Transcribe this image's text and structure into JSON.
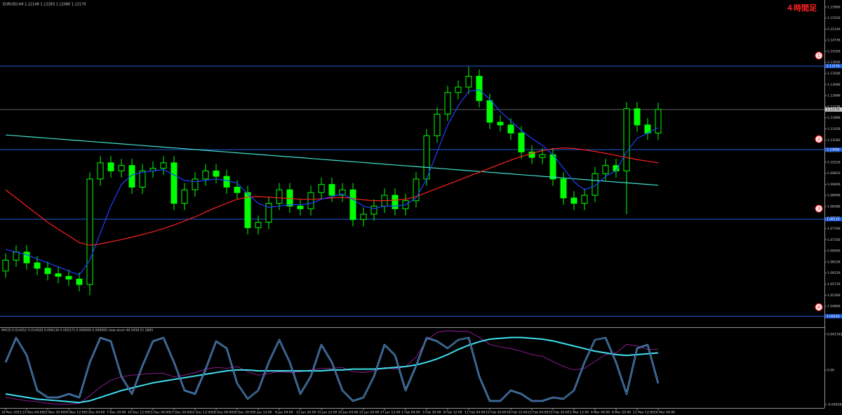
{
  "header": "EURUSD,H4  1.12148 1.12283 1.12080 1.12170",
  "timeframe_label": "４時間足",
  "chart_data": [
    {
      "type": "candlestick",
      "categories": [
        "18 Nov 2015",
        null,
        "23 Nov 04:00",
        null,
        "25 Nov 20:00",
        null,
        "30 Nov 12:00",
        null,
        "3 Dec 04:00",
        null,
        "7 Dec 20:00",
        null,
        "10 Dec 12:00",
        null,
        "15 Dec 04:00",
        null,
        "17 Dec 20:00",
        null,
        "22 Dec 12:00",
        null,
        "28 Dec 04:00",
        null,
        "30 Dec 20:00",
        null,
        "5 Jan 12:00",
        null,
        "8 Jan 04:00",
        null,
        "12 Jan 20:00",
        null,
        "15 Jan 12:00",
        null,
        "20 Jan 04:00",
        null,
        "22 Jan 20:00",
        null,
        "27 Jan 12:00",
        null,
        "1 Feb 04:00",
        null,
        "3 Feb 20:00",
        null,
        "8 Feb 12:00",
        null,
        "11 Feb 04:00",
        null,
        "15 Feb 20:00",
        null,
        "18 Feb 12:00",
        null,
        "23 Feb 04:00",
        null,
        "25 Feb 20:00",
        null,
        "1 Mar 12:00",
        null,
        "4 Mar 04:00",
        null,
        "8 Mar 20:00",
        null,
        "11 Mar 12:00",
        null,
        "16 Mar 04:00"
      ],
      "open": [
        1.062,
        1.066,
        1.069,
        1.065,
        1.063,
        1.061,
        1.06,
        1.059,
        1.057,
        1.096,
        1.102,
        1.099,
        1.101,
        1.093,
        1.099,
        1.1,
        1.102,
        1.087,
        1.092,
        1.096,
        1.099,
        1.097,
        1.093,
        1.091,
        1.078,
        1.08,
        1.087,
        1.092,
        1.086,
        1.085,
        1.091,
        1.094,
        1.09,
        1.092,
        1.081,
        1.083,
        1.086,
        1.09,
        1.085,
        1.088,
        1.096,
        1.112,
        1.12,
        1.128,
        1.13,
        1.134,
        1.125,
        1.117,
        1.116,
        1.113,
        1.106,
        1.104,
        1.105,
        1.096,
        1.089,
        1.087,
        1.09,
        1.098,
        1.101,
        1.099,
        1.122,
        1.116,
        1.113
      ],
      "high": [
        1.0685,
        1.0715,
        1.0715,
        1.0675,
        1.0655,
        1.0635,
        1.0625,
        1.0615,
        1.0985,
        1.1045,
        1.1045,
        1.1035,
        1.1035,
        1.1015,
        1.1025,
        1.1045,
        1.1045,
        1.0945,
        1.0985,
        1.1015,
        1.1015,
        1.0995,
        1.0955,
        1.0935,
        1.0825,
        1.0895,
        1.0945,
        1.0945,
        1.0885,
        1.0935,
        1.0965,
        1.0965,
        1.0945,
        1.0945,
        1.0855,
        1.0885,
        1.0925,
        1.0925,
        1.0905,
        1.0985,
        1.1145,
        1.1225,
        1.1305,
        1.1325,
        1.1375,
        1.1365,
        1.1275,
        1.1195,
        1.1185,
        1.1155,
        1.1085,
        1.1075,
        1.1075,
        1.0985,
        1.0915,
        1.0925,
        1.1005,
        1.1035,
        1.1035,
        1.1245,
        1.1245,
        1.1185,
        1.1242
      ],
      "low": [
        1.0595,
        1.0635,
        1.0625,
        1.0605,
        1.0585,
        1.0575,
        1.0565,
        1.0545,
        1.053,
        1.0935,
        1.0965,
        1.0965,
        1.0905,
        1.0905,
        1.0965,
        1.0975,
        1.0845,
        1.0845,
        1.0895,
        1.0935,
        1.0945,
        1.0905,
        1.0885,
        1.0755,
        1.0755,
        1.0775,
        1.0845,
        1.0835,
        1.0825,
        1.0825,
        1.0885,
        1.0875,
        1.0875,
        1.0785,
        1.0785,
        1.0805,
        1.0835,
        1.0825,
        1.0825,
        1.0855,
        1.0935,
        1.1095,
        1.1175,
        1.1255,
        1.1275,
        1.1225,
        1.1145,
        1.1135,
        1.1105,
        1.1035,
        1.1015,
        1.1015,
        1.0935,
        1.0865,
        1.0845,
        1.0845,
        1.0875,
        1.0955,
        1.0965,
        1.083,
        1.1135,
        1.1105,
        1.1105
      ],
      "close": [
        1.066,
        1.069,
        1.065,
        1.063,
        1.061,
        1.06,
        1.059,
        1.057,
        1.096,
        1.102,
        1.099,
        1.101,
        1.093,
        1.099,
        1.1,
        1.102,
        1.087,
        1.092,
        1.096,
        1.099,
        1.097,
        1.093,
        1.091,
        1.078,
        1.08,
        1.087,
        1.092,
        1.086,
        1.085,
        1.091,
        1.094,
        1.09,
        1.092,
        1.081,
        1.083,
        1.086,
        1.09,
        1.085,
        1.088,
        1.096,
        1.112,
        1.12,
        1.128,
        1.13,
        1.134,
        1.125,
        1.117,
        1.116,
        1.113,
        1.106,
        1.104,
        1.105,
        1.096,
        1.089,
        1.087,
        1.09,
        1.098,
        1.101,
        1.099,
        1.122,
        1.116,
        1.113,
        1.1217
      ],
      "candle_color": "#00ff00",
      "series": [
        {
          "color": "#40e0d0",
          "values": [
            1.1123,
            1.112,
            1.1117,
            1.1114,
            1.1111,
            1.1108,
            1.1105,
            1.1102,
            1.1099,
            1.1096,
            1.1093,
            1.109,
            1.1087,
            1.1084,
            1.1081,
            1.1078,
            1.1075,
            1.1072,
            1.1069,
            1.1066,
            1.1063,
            1.106,
            1.1057,
            1.1054,
            1.1051,
            1.1048,
            1.1045,
            1.1042,
            1.1039,
            1.1036,
            1.1033,
            1.103,
            1.1027,
            1.1024,
            1.1021,
            1.1018,
            1.1015,
            1.1012,
            1.1009,
            1.1006,
            1.1003,
            1.1,
            1.0997,
            1.0994,
            1.0991,
            1.0988,
            1.0985,
            1.0982,
            1.0979,
            1.0976,
            1.0973,
            1.097,
            1.0967,
            1.0964,
            1.0961,
            1.0958,
            1.0955,
            1.0952,
            1.0949,
            1.0946,
            1.0943,
            1.094,
            1.0937
          ]
        },
        {
          "color": "#ff2020",
          "values": [
            1.092,
            1.089,
            1.086,
            1.083,
            1.08,
            1.0775,
            1.075,
            1.0725,
            1.0715,
            1.072,
            1.0728,
            1.0736,
            1.0745,
            1.0755,
            1.0765,
            1.0777,
            1.079,
            1.0805,
            1.082,
            1.0838,
            1.0855,
            1.087,
            1.0885,
            1.0893,
            1.0895,
            1.0893,
            1.089,
            1.0888,
            1.0885,
            1.0885,
            1.0887,
            1.089,
            1.0892,
            1.0888,
            1.0883,
            1.088,
            1.088,
            1.0882,
            1.0885,
            1.0895,
            1.091,
            1.0925,
            1.094,
            1.0955,
            1.097,
            1.0985,
            1.1,
            1.1015,
            1.103,
            1.1043,
            1.1055,
            1.1065,
            1.1072,
            1.1075,
            1.1073,
            1.1068,
            1.1062,
            1.1055,
            1.1047,
            1.104,
            1.1032,
            1.1026,
            1.102
          ]
        },
        {
          "color": "#2040ff",
          "values": [
            1.07,
            1.069,
            1.068,
            1.0665,
            1.065,
            1.0635,
            1.062,
            1.0605,
            1.066,
            1.076,
            1.086,
            1.094,
            1.0975,
            1.0985,
            1.099,
            1.0995,
            1.0975,
            1.0955,
            1.095,
            1.0955,
            1.096,
            1.0955,
            1.0945,
            1.0905,
            1.087,
            1.0855,
            1.086,
            1.0865,
            1.0865,
            1.087,
            1.0885,
            1.0895,
            1.0905,
            1.0885,
            1.086,
            1.085,
            1.086,
            1.086,
            1.0865,
            1.089,
            1.096,
            1.106,
            1.116,
            1.123,
            1.1285,
            1.129,
            1.1255,
            1.121,
            1.1175,
            1.114,
            1.111,
            1.1085,
            1.105,
            1.1,
            1.095,
            1.092,
            1.0935,
            1.097,
            1.099,
            1.106,
            1.111,
            1.113,
            1.115
          ]
        }
      ],
      "ylim": [
        1.0412,
        1.1622
      ],
      "yticks": [
        1.04896,
        1.05306,
        1.05716,
        1.06126,
        1.06536,
        1.06946,
        1.07356,
        1.07766,
        1.08176,
        1.08586,
        1.08996,
        1.09406,
        1.09816,
        1.10226,
        1.10636,
        1.11046,
        1.11456,
        1.11866,
        1.12276,
        1.12686,
        1.13096,
        1.13506,
        1.13916,
        1.14326,
        1.14736,
        1.15146,
        1.15556,
        1.15966
      ],
      "levels": [
        {
          "value": 1.13776,
          "marker": "①"
        },
        {
          "value": 1.10686,
          "marker": "②"
        },
        {
          "value": 1.08116,
          "marker": "③"
        },
        {
          "value": 1.04526,
          "marker": "④"
        }
      ],
      "level_color": "#1e5bd8",
      "current_price": {
        "value": 1.1217,
        "label": "1.12170"
      }
    },
    {
      "type": "line",
      "title": "MACD 0.014452 0.014628 0.006136 0.005572 0.000000 0.000000 slow-stoch 49.0458 51.5865",
      "series": [
        {
          "color": "#b020b0",
          "values": [
            -0.032,
            -0.034,
            -0.036,
            -0.037,
            -0.039,
            -0.04,
            -0.04,
            -0.039,
            -0.03,
            -0.02,
            -0.012,
            -0.008,
            -0.006,
            -0.005,
            -0.004,
            -0.004,
            -0.008,
            -0.006,
            -0.003,
            0.001,
            0.003,
            0.002,
            0.004,
            -0.002,
            -0.006,
            -0.004,
            -0.002,
            -0.003,
            -0.002,
            0,
            0.002,
            0.002,
            0.003,
            -0.002,
            -0.003,
            -0.001,
            0.003,
            0.001,
            0.004,
            0.015,
            0.035,
            0.044,
            0.046,
            0.045,
            0.045,
            0.038,
            0.03,
            0.027,
            0.025,
            0.022,
            0.018,
            0.016,
            0.01,
            0.004,
            0,
            0.002,
            0.01,
            0.018,
            0.02,
            0.03,
            0.028,
            0.024,
            0.024
          ]
        },
        {
          "color": "#40e0f0",
          "width": 2,
          "values": [
            -0.028,
            -0.03,
            -0.032,
            -0.034,
            -0.035,
            -0.036,
            -0.037,
            -0.038,
            -0.036,
            -0.032,
            -0.028,
            -0.024,
            -0.021,
            -0.018,
            -0.015,
            -0.013,
            -0.011,
            -0.009,
            -0.007,
            -0.005,
            -0.003,
            -0.001,
            0,
            0,
            -0.001,
            -0.001,
            -0.001,
            -0.001,
            -0.001,
            -0.001,
            -0.001,
            0,
            0,
            0.001,
            0.001,
            0.001,
            0.002,
            0.003,
            0.004,
            0.006,
            0.009,
            0.013,
            0.018,
            0.024,
            0.029,
            0.033,
            0.036,
            0.037,
            0.038,
            0.038,
            0.037,
            0.036,
            0.034,
            0.031,
            0.028,
            0.025,
            0.022,
            0.02,
            0.018,
            0.017,
            0.018,
            0.019,
            0.02
          ]
        },
        {
          "color": "#6fb8ff",
          "axis": "y2",
          "double": true,
          "values": [
            60,
            95,
            70,
            20,
            10,
            10,
            15,
            10,
            60,
            95,
            90,
            40,
            15,
            55,
            90,
            95,
            60,
            20,
            15,
            50,
            90,
            80,
            30,
            8,
            20,
            60,
            92,
            60,
            15,
            40,
            85,
            60,
            20,
            5,
            10,
            40,
            85,
            70,
            20,
            55,
            95,
            90,
            80,
            92,
            95,
            40,
            5,
            5,
            20,
            15,
            5,
            5,
            10,
            8,
            20,
            60,
            92,
            95,
            60,
            15,
            80,
            85,
            30
          ]
        }
      ],
      "ylim": [
        -0.040284,
        0.041763
      ],
      "yticks": [
        -0.040284,
        {
          "value": 0,
          "label": "0.00"
        },
        0.041763
      ],
      "y2lim": [
        0,
        100
      ]
    }
  ]
}
